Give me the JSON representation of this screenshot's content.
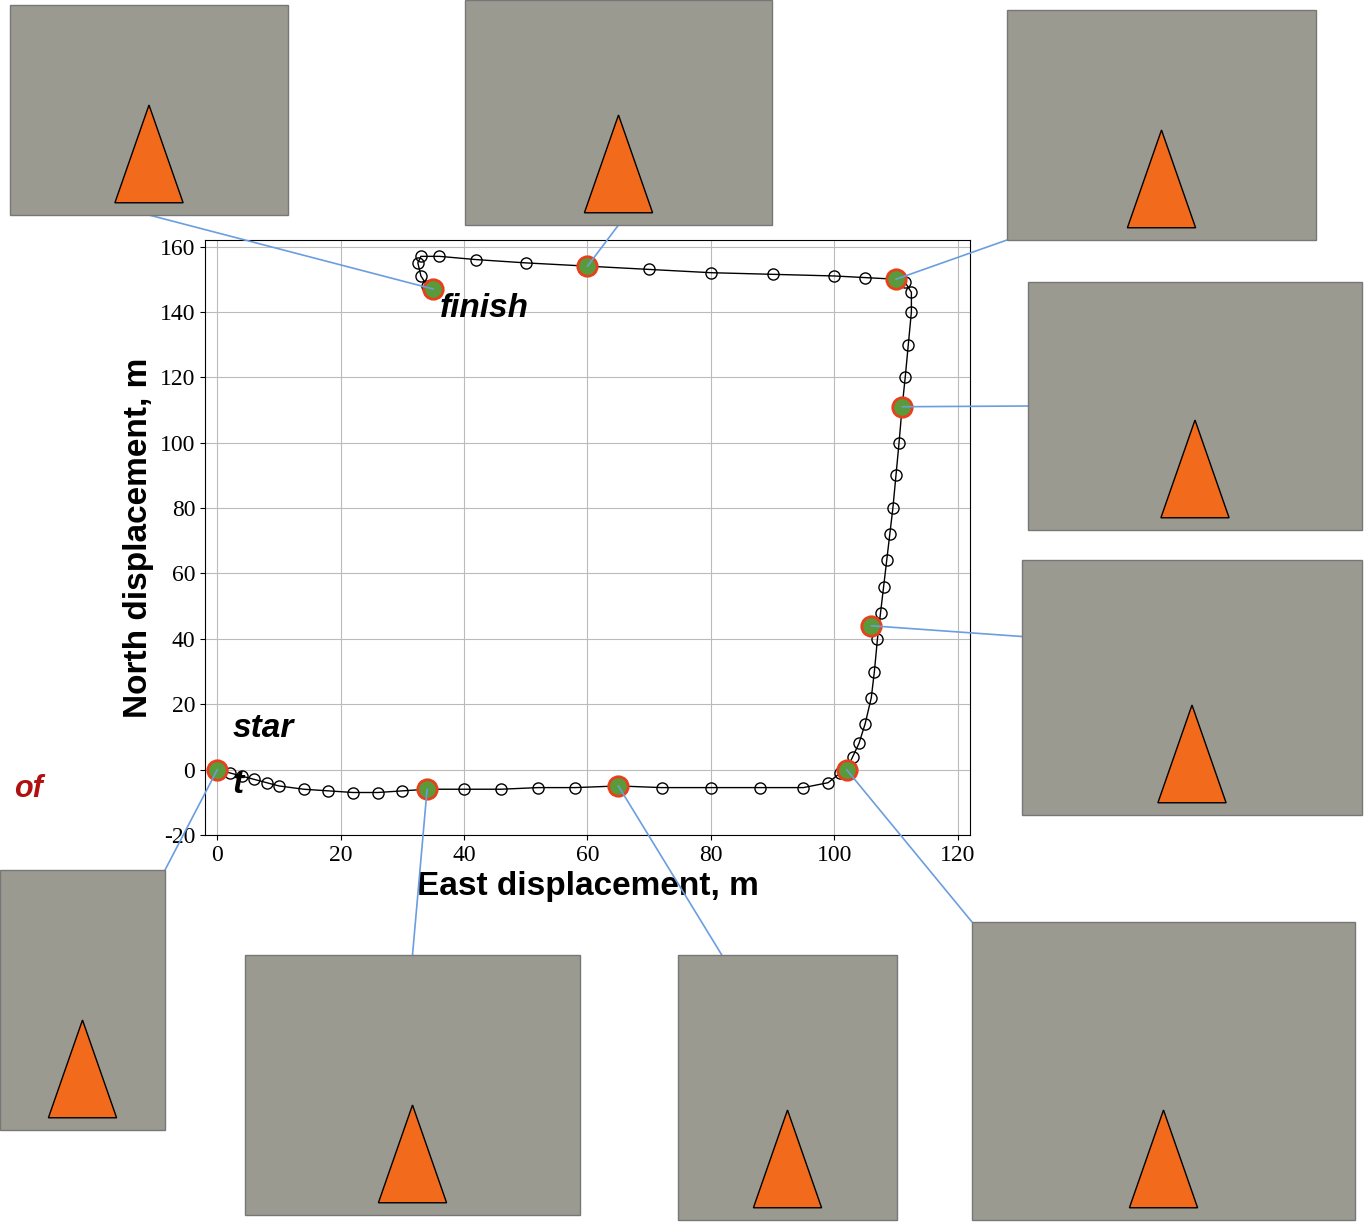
{
  "chart_data": {
    "type": "scatter",
    "xlabel": "East displacement, m",
    "ylabel": "North displacement, m",
    "xlim": [
      -2,
      122
    ],
    "ylim": [
      -20,
      162
    ],
    "xticks": [
      0,
      20,
      40,
      60,
      80,
      100,
      120
    ],
    "yticks": [
      -20,
      0,
      20,
      40,
      60,
      80,
      100,
      120,
      140,
      160
    ],
    "grid": true,
    "series": [
      {
        "color": "#000000",
        "marker": "o",
        "line_style": "solid",
        "x": [
          0,
          2,
          4,
          6,
          8,
          10,
          14,
          18,
          22,
          26,
          30,
          34,
          40,
          46,
          52,
          58,
          65,
          72,
          80,
          88,
          95,
          99,
          101,
          102,
          103,
          104,
          105,
          106,
          106.5,
          107,
          107.5,
          108,
          108.5,
          109,
          109.5,
          110,
          110.5,
          111,
          111.5,
          112,
          112.5,
          112.5,
          111.5,
          110,
          105,
          100,
          90,
          80,
          70,
          60,
          50,
          42,
          36,
          33,
          32.5,
          33,
          34,
          35
        ],
        "y": [
          0,
          -1,
          -2,
          -3,
          -4,
          -5,
          -6,
          -6.5,
          -7,
          -7,
          -6.5,
          -6,
          -6,
          -6,
          -5.5,
          -5.5,
          -5,
          -5.5,
          -5.5,
          -5.5,
          -5.5,
          -4,
          -1,
          0,
          4,
          8,
          14,
          22,
          30,
          40,
          48,
          56,
          64,
          72,
          80,
          90,
          100,
          111,
          120,
          130,
          140,
          146,
          149,
          150,
          150.5,
          151,
          151.5,
          152,
          153,
          154,
          155,
          156,
          157,
          157,
          155,
          151,
          148,
          147
        ]
      },
      {
        "color": "#e8401c",
        "marker": "o",
        "line_style": "none",
        "x": [
          35,
          60,
          110,
          111,
          106,
          102,
          65,
          34,
          0
        ],
        "y": [
          147,
          154,
          150,
          111,
          44,
          0,
          -5,
          -6,
          0
        ]
      }
    ],
    "annotations": [
      {
        "text": "finish",
        "x": 36,
        "y": 141
      },
      {
        "text": "star",
        "x": 2.4,
        "y": 12.7
      },
      {
        "text": "t",
        "x": 2.4,
        "y": -4.7
      },
      {
        "text": "of",
        "x": -33,
        "y": -6
      }
    ]
  }
}
